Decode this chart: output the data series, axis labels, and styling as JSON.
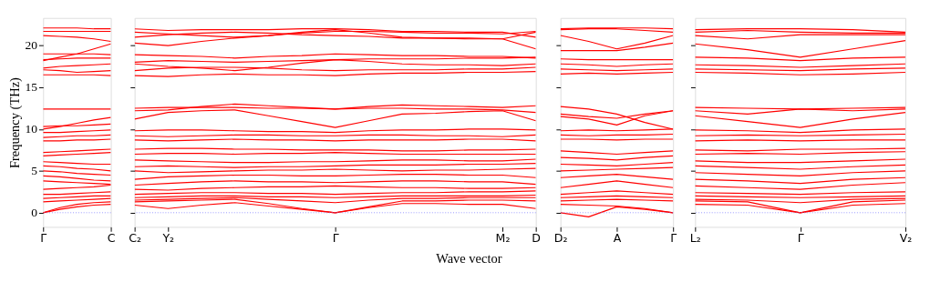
{
  "chart_data": [
    {
      "type": "line",
      "ylabel": "Frequency (THz)",
      "categories": [
        "Γ",
        null,
        null,
        null,
        "C"
      ],
      "ylim": [
        -1.7,
        23.3
      ],
      "yticks": [
        0,
        5,
        10,
        15,
        20
      ],
      "ref_lines": [
        {
          "axis": "y",
          "value": 0,
          "color": "#7777ff",
          "line_style": "dotted"
        }
      ],
      "line_style": "solid",
      "series": [
        {
          "color": "#ff0000",
          "values": [
            0,
            0.4,
            0.7,
            0.9,
            1.0
          ]
        },
        {
          "color": "#ff0000",
          "values": [
            0,
            0.6,
            1.0,
            1.2,
            1.3
          ]
        },
        {
          "color": "#ff0000",
          "values": [
            1.3,
            1.4,
            1.5,
            1.6,
            1.7
          ]
        },
        {
          "color": "#ff0000",
          "values": [
            1.7,
            1.8,
            1.9,
            2.0,
            2.0
          ]
        },
        {
          "color": "#ff0000",
          "values": [
            2.2,
            2.2,
            2.3,
            2.4,
            2.5
          ]
        },
        {
          "color": "#ff0000",
          "values": [
            2.8,
            2.9,
            3.0,
            3.1,
            3.3
          ]
        },
        {
          "color": "#ff0000",
          "values": [
            3.8,
            3.7,
            3.6,
            3.5,
            3.4
          ]
        },
        {
          "color": "#ff0000",
          "values": [
            4.4,
            4.3,
            4.1,
            3.9,
            3.8
          ]
        },
        {
          "color": "#ff0000",
          "values": [
            5.0,
            4.9,
            4.7,
            4.6,
            4.5
          ]
        },
        {
          "color": "#ff0000",
          "values": [
            5.6,
            5.5,
            5.3,
            5.2,
            5.0
          ]
        },
        {
          "color": "#ff0000",
          "values": [
            6.1,
            6.0,
            5.9,
            5.8,
            5.8
          ]
        },
        {
          "color": "#ff0000",
          "values": [
            6.8,
            6.9,
            7.0,
            7.1,
            7.2
          ]
        },
        {
          "color": "#ff0000",
          "values": [
            7.2,
            7.3,
            7.4,
            7.5,
            7.6
          ]
        },
        {
          "color": "#ff0000",
          "values": [
            8.6,
            8.6,
            8.7,
            8.7,
            8.8
          ]
        },
        {
          "color": "#ff0000",
          "values": [
            9.0,
            9.1,
            9.2,
            9.2,
            9.3
          ]
        },
        {
          "color": "#ff0000",
          "values": [
            9.6,
            9.6,
            9.7,
            9.8,
            9.9
          ]
        },
        {
          "color": "#ff0000",
          "values": [
            10.3,
            10.4,
            10.4,
            10.5,
            10.6
          ]
        },
        {
          "color": "#ff0000",
          "values": [
            10.0,
            10.3,
            10.7,
            11.1,
            11.4
          ]
        },
        {
          "color": "#ff0000",
          "values": [
            12.4,
            12.4,
            12.4,
            12.4,
            12.4
          ]
        },
        {
          "color": "#ff0000",
          "values": [
            16.5,
            16.5,
            16.5,
            16.5,
            16.4
          ]
        },
        {
          "color": "#ff0000",
          "values": [
            17.1,
            17.0,
            16.8,
            16.9,
            17.0
          ]
        },
        {
          "color": "#ff0000",
          "values": [
            17.3,
            17.5,
            17.6,
            17.7,
            17.8
          ]
        },
        {
          "color": "#ff0000",
          "values": [
            18.3,
            18.4,
            18.5,
            18.5,
            18.5
          ]
        },
        {
          "color": "#ff0000",
          "values": [
            18.2,
            18.6,
            19.0,
            19.6,
            20.2
          ]
        },
        {
          "color": "#ff0000",
          "values": [
            19.0,
            19.0,
            19.0,
            19.0,
            18.9
          ]
        },
        {
          "color": "#ff0000",
          "values": [
            21.2,
            21.1,
            21.0,
            20.8,
            20.5
          ]
        },
        {
          "color": "#ff0000",
          "values": [
            21.7,
            21.7,
            21.7,
            21.7,
            21.7
          ]
        },
        {
          "color": "#ff0000",
          "values": [
            22.1,
            22.1,
            22.1,
            22.0,
            22.0
          ]
        }
      ]
    },
    {
      "type": "line",
      "xlabel": "Wave vector",
      "tick_labels": "x",
      "categories": [
        "C₂",
        "Y₂",
        null,
        null,
        null,
        null,
        "Γ",
        null,
        null,
        null,
        null,
        "M₂",
        "D"
      ],
      "ylim": [
        -1.7,
        23.3
      ],
      "yticks": [
        0,
        5,
        10,
        15,
        20
      ],
      "ref_lines": [
        {
          "axis": "y",
          "value": 0,
          "color": "#7777ff",
          "line_style": "dotted"
        }
      ],
      "line_style": "solid",
      "series": [
        {
          "color": "#ff0000",
          "values": [
            0.9,
            0.5,
            0.9,
            1.2,
            0.8,
            0.4,
            0,
            0.6,
            1.1,
            1.1,
            1.0,
            1.0,
            0.5
          ]
        },
        {
          "color": "#ff0000",
          "values": [
            1.3,
            1.4,
            1.5,
            1.6,
            1.1,
            0.5,
            0,
            0.7,
            1.4,
            1.4,
            1.5,
            1.5,
            1.4
          ]
        },
        {
          "color": "#ff0000",
          "values": [
            1.5,
            1.6,
            1.7,
            1.8,
            1.6,
            1.4,
            1.2,
            1.5,
            1.7,
            1.7,
            1.8,
            1.8,
            1.8
          ]
        },
        {
          "color": "#ff0000",
          "values": [
            1.8,
            1.9,
            2.0,
            2.0,
            1.9,
            1.9,
            1.8,
            1.9,
            2.0,
            2.0,
            2.0,
            2.0,
            2.1
          ]
        },
        {
          "color": "#ff0000",
          "values": [
            2.2,
            2.3,
            2.4,
            2.4,
            2.3,
            2.3,
            2.2,
            2.3,
            2.4,
            2.4,
            2.5,
            2.5,
            2.6
          ]
        },
        {
          "color": "#ff0000",
          "values": [
            2.8,
            2.7,
            2.9,
            3.0,
            3.1,
            3.1,
            3.2,
            3.1,
            3.0,
            3.0,
            2.9,
            2.9,
            3.0
          ]
        },
        {
          "color": "#ff0000",
          "values": [
            3.3,
            3.5,
            3.7,
            3.8,
            3.7,
            3.7,
            3.6,
            3.7,
            3.8,
            3.8,
            3.7,
            3.7,
            3.4
          ]
        },
        {
          "color": "#ff0000",
          "values": [
            4.0,
            4.3,
            4.4,
            4.5,
            4.5,
            4.4,
            4.4,
            4.5,
            4.6,
            4.6,
            4.5,
            4.5,
            4.2
          ]
        },
        {
          "color": "#ff0000",
          "values": [
            5.0,
            4.8,
            4.9,
            5.0,
            5.1,
            5.1,
            5.2,
            5.1,
            5.0,
            5.1,
            5.1,
            5.2,
            5.3
          ]
        },
        {
          "color": "#ff0000",
          "values": [
            5.5,
            5.6,
            5.5,
            5.4,
            5.5,
            5.5,
            5.6,
            5.7,
            5.7,
            5.7,
            5.8,
            5.8,
            5.9
          ]
        },
        {
          "color": "#ff0000",
          "values": [
            6.3,
            6.2,
            6.1,
            6.0,
            6.0,
            6.1,
            6.1,
            6.2,
            6.3,
            6.3,
            6.2,
            6.2,
            6.4
          ]
        },
        {
          "color": "#ff0000",
          "values": [
            7.0,
            7.1,
            7.1,
            7.0,
            7.1,
            7.1,
            7.2,
            7.1,
            7.0,
            7.0,
            7.0,
            7.0,
            7.0
          ]
        },
        {
          "color": "#ff0000",
          "values": [
            7.6,
            7.7,
            7.7,
            7.6,
            7.6,
            7.5,
            7.5,
            7.5,
            7.4,
            7.4,
            7.5,
            7.5,
            7.6
          ]
        },
        {
          "color": "#ff0000",
          "values": [
            8.7,
            8.6,
            8.7,
            8.8,
            8.7,
            8.7,
            8.6,
            8.7,
            8.7,
            8.7,
            8.8,
            8.8,
            8.6
          ]
        },
        {
          "color": "#ff0000",
          "values": [
            9.2,
            9.1,
            9.2,
            9.3,
            9.3,
            9.2,
            9.2,
            9.3,
            9.3,
            9.2,
            9.2,
            9.1,
            9.3
          ]
        },
        {
          "color": "#ff0000",
          "values": [
            9.8,
            9.9,
            9.9,
            9.8,
            9.7,
            9.7,
            9.6,
            9.8,
            9.9,
            9.9,
            10.0,
            10.0,
            9.9
          ]
        },
        {
          "color": "#ff0000",
          "values": [
            11.2,
            12.0,
            12.2,
            12.3,
            11.6,
            10.9,
            10.2,
            11.0,
            11.8,
            11.9,
            12.1,
            12.2,
            11.0
          ]
        },
        {
          "color": "#ff0000",
          "values": [
            12.2,
            12.3,
            12.7,
            13.0,
            12.8,
            12.6,
            12.4,
            12.5,
            12.5,
            12.4,
            12.4,
            12.3,
            12.0
          ]
        },
        {
          "color": "#ff0000",
          "values": [
            12.5,
            12.6,
            12.6,
            12.6,
            12.5,
            12.5,
            12.4,
            12.7,
            12.9,
            12.8,
            12.7,
            12.6,
            12.8
          ]
        },
        {
          "color": "#ff0000",
          "values": [
            16.4,
            16.3,
            16.5,
            16.6,
            16.5,
            16.5,
            16.4,
            16.6,
            16.7,
            16.7,
            16.8,
            16.8,
            16.9
          ]
        },
        {
          "color": "#ff0000",
          "values": [
            17.0,
            17.3,
            17.4,
            17.4,
            17.3,
            17.1,
            17.0,
            17.1,
            17.1,
            17.1,
            17.2,
            17.2,
            17.4
          ]
        },
        {
          "color": "#ff0000",
          "values": [
            17.8,
            17.5,
            17.3,
            17.0,
            17.4,
            17.9,
            18.3,
            18.1,
            17.8,
            17.7,
            17.7,
            17.6,
            17.8
          ]
        },
        {
          "color": "#ff0000",
          "values": [
            18.0,
            18.2,
            18.1,
            18.0,
            18.1,
            18.2,
            18.3,
            18.4,
            18.4,
            18.4,
            18.5,
            18.5,
            18.6
          ]
        },
        {
          "color": "#ff0000",
          "values": [
            18.9,
            18.8,
            18.7,
            18.5,
            18.7,
            18.8,
            19.0,
            18.9,
            18.8,
            18.8,
            18.7,
            18.7,
            18.5
          ]
        },
        {
          "color": "#ff0000",
          "values": [
            20.3,
            20.0,
            20.5,
            20.9,
            21.2,
            21.6,
            21.9,
            21.5,
            21.0,
            20.9,
            20.9,
            20.8,
            19.6
          ]
        },
        {
          "color": "#ff0000",
          "values": [
            21.0,
            21.3,
            21.5,
            21.6,
            21.5,
            21.3,
            21.2,
            21.1,
            20.9,
            20.9,
            20.8,
            20.8,
            21.6
          ]
        },
        {
          "color": "#ff0000",
          "values": [
            21.6,
            21.4,
            21.2,
            21.0,
            21.2,
            21.5,
            21.7,
            21.7,
            21.6,
            21.5,
            21.5,
            21.4,
            21.7
          ]
        },
        {
          "color": "#ff0000",
          "values": [
            22.0,
            21.8,
            21.9,
            21.9,
            21.9,
            22.0,
            22.0,
            21.9,
            21.7,
            21.7,
            21.6,
            21.6,
            21.0
          ]
        }
      ]
    },
    {
      "type": "line",
      "tick_labels": "x",
      "categories": [
        "D₂",
        null,
        "A",
        null,
        "Γ"
      ],
      "ylim": [
        -1.7,
        23.3
      ],
      "yticks": [
        0,
        5,
        10,
        15,
        20
      ],
      "ref_lines": [
        {
          "axis": "y",
          "value": 0,
          "color": "#7777ff",
          "line_style": "dotted"
        }
      ],
      "line_style": "solid",
      "series": [
        {
          "color": "#ff0000",
          "values": [
            0,
            -0.5,
            0.7,
            0.4,
            0
          ]
        },
        {
          "color": "#ff0000",
          "values": [
            1.0,
            0.9,
            0.8,
            0.5,
            0
          ]
        },
        {
          "color": "#ff0000",
          "values": [
            1.4,
            1.5,
            1.6,
            1.5,
            1.4
          ]
        },
        {
          "color": "#ff0000",
          "values": [
            1.8,
            1.9,
            2.0,
            1.9,
            1.8
          ]
        },
        {
          "color": "#ff0000",
          "values": [
            2.2,
            2.4,
            2.6,
            2.4,
            2.2
          ]
        },
        {
          "color": "#ff0000",
          "values": [
            3.0,
            3.4,
            3.8,
            3.4,
            3.0
          ]
        },
        {
          "color": "#ff0000",
          "values": [
            4.2,
            4.4,
            4.6,
            4.3,
            4.0
          ]
        },
        {
          "color": "#ff0000",
          "values": [
            5.0,
            5.1,
            5.2,
            5.3,
            5.4
          ]
        },
        {
          "color": "#ff0000",
          "values": [
            5.8,
            5.7,
            5.6,
            5.8,
            6.0
          ]
        },
        {
          "color": "#ff0000",
          "values": [
            6.6,
            6.5,
            6.3,
            6.6,
            6.8
          ]
        },
        {
          "color": "#ff0000",
          "values": [
            7.4,
            7.2,
            7.0,
            7.2,
            7.4
          ]
        },
        {
          "color": "#ff0000",
          "values": [
            8.8,
            8.8,
            8.7,
            8.8,
            8.8
          ]
        },
        {
          "color": "#ff0000",
          "values": [
            9.3,
            9.2,
            9.3,
            9.3,
            9.4
          ]
        },
        {
          "color": "#ff0000",
          "values": [
            9.8,
            9.9,
            9.8,
            9.9,
            10.0
          ]
        },
        {
          "color": "#ff0000",
          "values": [
            12.7,
            12.4,
            11.8,
            10.8,
            10.0
          ]
        },
        {
          "color": "#ff0000",
          "values": [
            11.8,
            11.5,
            11.3,
            11.8,
            12.2
          ]
        },
        {
          "color": "#ff0000",
          "values": [
            11.5,
            11.2,
            10.5,
            11.6,
            12.2
          ]
        },
        {
          "color": "#ff0000",
          "values": [
            16.6,
            16.7,
            16.6,
            16.7,
            16.8
          ]
        },
        {
          "color": "#ff0000",
          "values": [
            17.2,
            17.1,
            17.0,
            17.1,
            17.2
          ]
        },
        {
          "color": "#ff0000",
          "values": [
            17.8,
            17.7,
            17.5,
            17.7,
            17.8
          ]
        },
        {
          "color": "#ff0000",
          "values": [
            18.4,
            18.3,
            18.3,
            18.3,
            18.3
          ]
        },
        {
          "color": "#ff0000",
          "values": [
            19.4,
            19.4,
            19.4,
            19.8,
            20.3
          ]
        },
        {
          "color": "#ff0000",
          "values": [
            21.2,
            20.5,
            19.6,
            20.3,
            21.2
          ]
        },
        {
          "color": "#ff0000",
          "values": [
            21.9,
            22.0,
            22.0,
            21.8,
            21.6
          ]
        },
        {
          "color": "#ff0000",
          "values": [
            22.0,
            22.1,
            22.1,
            22.1,
            22.0
          ]
        }
      ]
    },
    {
      "type": "line",
      "tick_labels": "x",
      "categories": [
        "L₂",
        null,
        "Γ",
        null,
        "V₂"
      ],
      "ylim": [
        -1.7,
        23.3
      ],
      "yticks": [
        0,
        5,
        10,
        15,
        20
      ],
      "ref_lines": [
        {
          "axis": "y",
          "value": 0,
          "color": "#7777ff",
          "line_style": "dotted"
        }
      ],
      "line_style": "solid",
      "series": [
        {
          "color": "#ff0000",
          "values": [
            1.0,
            0.9,
            0,
            0.9,
            1.1
          ]
        },
        {
          "color": "#ff0000",
          "values": [
            1.4,
            1.3,
            0,
            1.3,
            1.5
          ]
        },
        {
          "color": "#ff0000",
          "values": [
            1.6,
            1.5,
            1.2,
            1.6,
            1.7
          ]
        },
        {
          "color": "#ff0000",
          "values": [
            2.0,
            1.9,
            1.8,
            1.9,
            2.0
          ]
        },
        {
          "color": "#ff0000",
          "values": [
            2.4,
            2.3,
            2.2,
            2.4,
            2.5
          ]
        },
        {
          "color": "#ff0000",
          "values": [
            3.2,
            3.0,
            2.8,
            3.3,
            3.6
          ]
        },
        {
          "color": "#ff0000",
          "values": [
            4.0,
            3.8,
            3.5,
            4.0,
            4.2
          ]
        },
        {
          "color": "#ff0000",
          "values": [
            4.8,
            4.6,
            4.4,
            4.8,
            5.0
          ]
        },
        {
          "color": "#ff0000",
          "values": [
            5.6,
            5.4,
            5.2,
            5.5,
            5.7
          ]
        },
        {
          "color": "#ff0000",
          "values": [
            6.2,
            6.0,
            6.0,
            6.2,
            6.4
          ]
        },
        {
          "color": "#ff0000",
          "values": [
            7.0,
            7.1,
            7.0,
            7.2,
            7.3
          ]
        },
        {
          "color": "#ff0000",
          "values": [
            7.5,
            7.4,
            7.6,
            7.6,
            7.7
          ]
        },
        {
          "color": "#ff0000",
          "values": [
            8.6,
            8.7,
            8.6,
            8.7,
            8.7
          ]
        },
        {
          "color": "#ff0000",
          "values": [
            9.2,
            9.3,
            9.2,
            9.3,
            9.4
          ]
        },
        {
          "color": "#ff0000",
          "values": [
            9.9,
            9.8,
            9.6,
            9.9,
            10.0
          ]
        },
        {
          "color": "#ff0000",
          "values": [
            11.6,
            10.9,
            10.2,
            11.2,
            12.0
          ]
        },
        {
          "color": "#ff0000",
          "values": [
            12.2,
            11.8,
            12.4,
            12.2,
            12.4
          ]
        },
        {
          "color": "#ff0000",
          "values": [
            12.6,
            12.5,
            12.4,
            12.5,
            12.6
          ]
        },
        {
          "color": "#ff0000",
          "values": [
            16.8,
            16.7,
            16.5,
            16.6,
            16.8
          ]
        },
        {
          "color": "#ff0000",
          "values": [
            17.2,
            17.1,
            17.0,
            17.2,
            17.3
          ]
        },
        {
          "color": "#ff0000",
          "values": [
            17.7,
            17.6,
            17.4,
            17.6,
            17.8
          ]
        },
        {
          "color": "#ff0000",
          "values": [
            18.6,
            18.5,
            18.2,
            18.5,
            18.6
          ]
        },
        {
          "color": "#ff0000",
          "values": [
            20.2,
            19.5,
            18.6,
            19.6,
            20.6
          ]
        },
        {
          "color": "#ff0000",
          "values": [
            21.2,
            20.8,
            21.3,
            21.3,
            21.3
          ]
        },
        {
          "color": "#ff0000",
          "values": [
            21.6,
            21.8,
            21.6,
            21.5,
            21.5
          ]
        },
        {
          "color": "#ff0000",
          "values": [
            21.9,
            22.0,
            22.0,
            21.9,
            21.6
          ]
        }
      ]
    }
  ]
}
